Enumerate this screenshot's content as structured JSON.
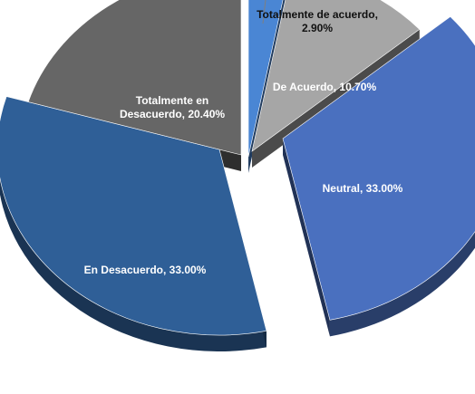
{
  "chart_data": {
    "type": "pie",
    "three_d": true,
    "exploded": true,
    "legend": "none",
    "slices": [
      {
        "label": "Totalmente de acuerdo",
        "value": 2.9,
        "display": "Totalmente de acuerdo,\n2.90%",
        "color": "#4a86d4",
        "label_color": "#111111"
      },
      {
        "label": "De Acuerdo",
        "value": 10.7,
        "display": "De Acuerdo, 10.70%",
        "color": "#a6a6a6",
        "label_color": "#ffffff"
      },
      {
        "label": "Neutral",
        "value": 33.0,
        "display": "Neutral, 33.00%",
        "color": "#4a70bf",
        "label_color": "#ffffff"
      },
      {
        "label": "En Desacuerdo",
        "value": 33.0,
        "display": "En Desacuerdo, 33.00%",
        "color": "#2f5f97",
        "label_color": "#ffffff"
      },
      {
        "label": "Totalmente en Desacuerdo",
        "value": 20.4,
        "display": "Totalmente en\nDesacuerdo, 20.40%",
        "color": "#666666",
        "label_color": "#ffffff"
      }
    ]
  }
}
